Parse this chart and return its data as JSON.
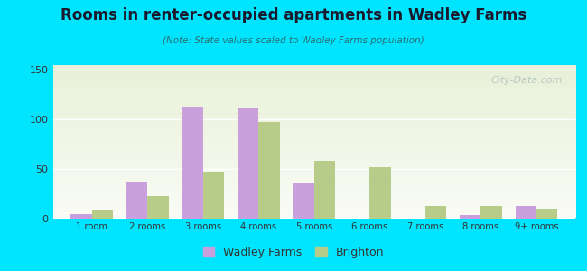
{
  "title": "Rooms in renter-occupied apartments in Wadley Farms",
  "subtitle": "(Note: State values scaled to Wadley Farms population)",
  "categories": [
    "1 room",
    "2 rooms",
    "3 rooms",
    "4 rooms",
    "5 rooms",
    "6 rooms",
    "7 rooms",
    "8 rooms",
    "9+ rooms"
  ],
  "wadley_farms": [
    4,
    36,
    113,
    111,
    35,
    0,
    0,
    3,
    12
  ],
  "brighton": [
    9,
    22,
    47,
    97,
    58,
    52,
    12,
    12,
    10
  ],
  "wadley_color": "#c9a0dc",
  "brighton_color": "#b8cc8a",
  "background_outer": "#00e5ff",
  "plot_bg_top": "#e8f0d8",
  "plot_bg_bottom": "#f5f8ef",
  "ylim": [
    0,
    155
  ],
  "yticks": [
    0,
    50,
    100,
    150
  ],
  "bar_width": 0.38,
  "watermark": "City-Data.com",
  "legend_wadley": "Wadley Farms",
  "legend_brighton": "Brighton",
  "title_color": "#1a1a2e",
  "subtitle_color": "#2a6e6e"
}
